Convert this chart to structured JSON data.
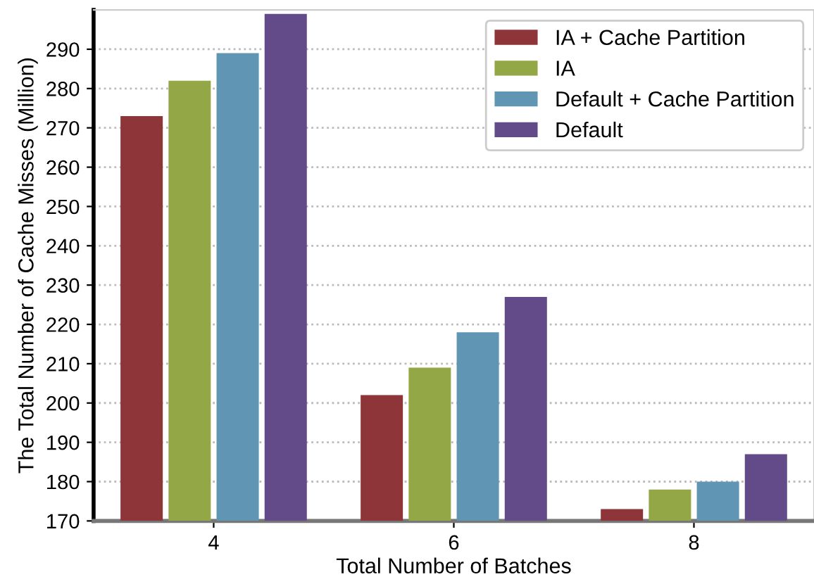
{
  "chart_data": {
    "type": "bar",
    "xlabel": "Total Number of Batches",
    "ylabel": "The Total Number of Cache Misses (Million)",
    "categories": [
      "4",
      "6",
      "8"
    ],
    "series": [
      {
        "name": "IA + Cache Partition",
        "color": "#8e353a",
        "values": [
          273,
          202,
          173
        ]
      },
      {
        "name": "IA",
        "color": "#93a747",
        "values": [
          282,
          209,
          178
        ]
      },
      {
        "name": "Default + Cache Partition",
        "color": "#6096b4",
        "values": [
          289,
          218,
          180
        ]
      },
      {
        "name": "Default",
        "color": "#634a89",
        "values": [
          299,
          227,
          187
        ]
      }
    ],
    "ylim": [
      170,
      300
    ],
    "yticks": [
      170,
      180,
      190,
      200,
      210,
      220,
      230,
      240,
      250,
      260,
      270,
      280,
      290
    ],
    "grid": "y",
    "legend": "top right"
  }
}
